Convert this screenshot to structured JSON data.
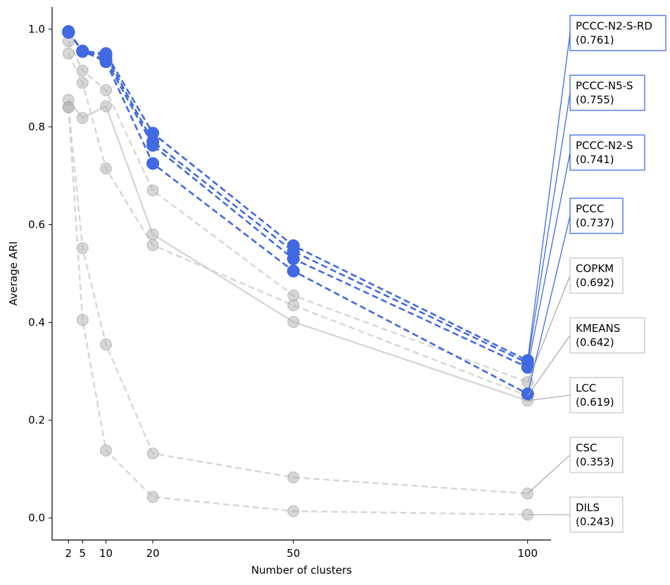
{
  "chart_data": {
    "type": "line",
    "title": "",
    "xlabel": "Number of clusters",
    "ylabel": "Average ARI",
    "xlim": [
      -1.5,
      105
    ],
    "ylim": [
      -0.045,
      1.045
    ],
    "x_ticks": [
      2,
      5,
      10,
      20,
      50,
      100
    ],
    "y_ticks": [
      0.0,
      0.2,
      0.4,
      0.6,
      0.8,
      1.0
    ],
    "x_tick_labels": [
      "2",
      "5",
      "10",
      "20",
      "50",
      "100"
    ],
    "y_tick_labels": [
      "0.0",
      "0.2",
      "0.4",
      "0.6",
      "0.8",
      "1.0"
    ],
    "x": [
      2,
      5,
      10,
      20,
      50,
      100
    ],
    "highlight_color": "#4169e1",
    "muted_color": "#c8c8c8",
    "series": [
      {
        "name": "PCCC-N2-S-RD",
        "score": "(0.761)",
        "values": [
          0.995,
          0.955,
          0.95,
          0.787,
          0.557,
          0.322
        ],
        "style": "dashed",
        "highlight": true
      },
      {
        "name": "PCCC-N5-S",
        "score": "(0.755)",
        "values": [
          0.993,
          0.954,
          0.945,
          0.77,
          0.545,
          0.317
        ],
        "style": "dashed",
        "highlight": true
      },
      {
        "name": "PCCC-N2-S",
        "score": "(0.741)",
        "values": [
          0.994,
          0.955,
          0.937,
          0.762,
          0.53,
          0.308
        ],
        "style": "dashed",
        "highlight": true
      },
      {
        "name": "PCCC",
        "score": "(0.737)",
        "values": [
          0.994,
          0.955,
          0.933,
          0.725,
          0.505,
          0.254
        ],
        "style": "dashed",
        "highlight": true
      },
      {
        "name": "COPKM",
        "score": "(0.692)",
        "values": [
          0.975,
          0.915,
          0.875,
          0.67,
          0.455,
          0.278
        ],
        "style": "dashed",
        "highlight": false
      },
      {
        "name": "KMEANS",
        "score": "(0.642)",
        "values": [
          0.95,
          0.89,
          0.715,
          0.558,
          0.435,
          0.25
        ],
        "style": "dashed",
        "highlight": false
      },
      {
        "name": "LCC",
        "score": "(0.619)",
        "values": [
          0.855,
          0.818,
          0.842,
          0.58,
          0.401,
          0.24
        ],
        "style": "solid",
        "highlight": false
      },
      {
        "name": "CSC",
        "score": "(0.353)",
        "values": [
          0.84,
          0.552,
          0.355,
          0.132,
          0.083,
          0.05
        ],
        "style": "dashed",
        "highlight": false
      },
      {
        "name": "DILS",
        "score": "(0.243)",
        "values": [
          0.84,
          0.405,
          0.138,
          0.043,
          0.014,
          0.007
        ],
        "style": "dashed",
        "highlight": false
      }
    ]
  }
}
